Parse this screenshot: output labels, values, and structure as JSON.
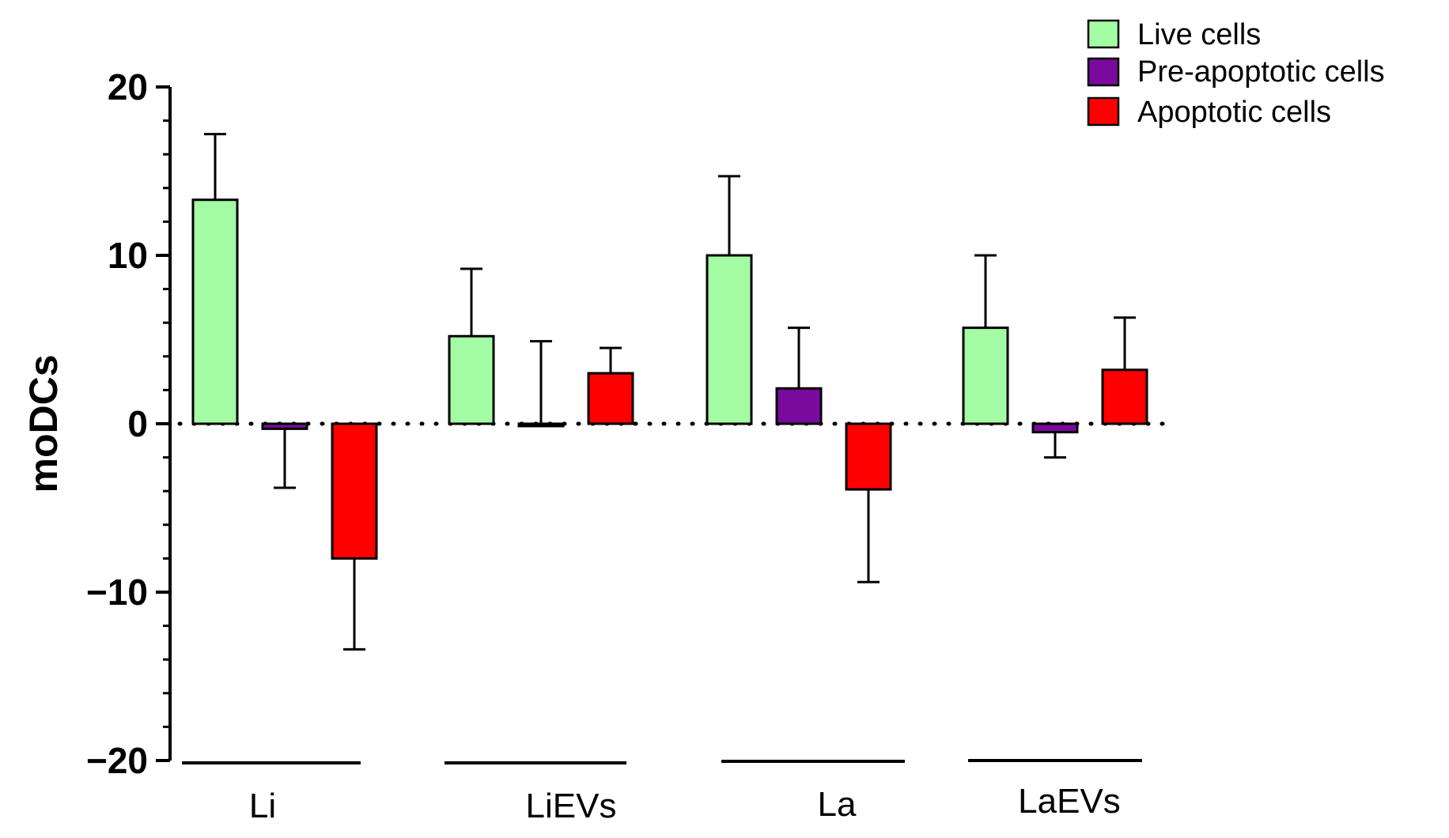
{
  "chart_data": {
    "type": "bar",
    "title": "",
    "xlabel": "",
    "ylabel": "moDCs",
    "ylim": [
      -20,
      20
    ],
    "yticks": [
      20,
      10,
      0,
      -10,
      -20
    ],
    "ytick_labels": [
      "20",
      "10",
      "0",
      "−10",
      "−20"
    ],
    "categories": [
      "Li",
      "LiEVs",
      "La",
      "LaEVs"
    ],
    "reference_line": 0,
    "legend_position": "top-right",
    "series": [
      {
        "name": "Live cells",
        "color": "#a3fca3",
        "values": [
          13.3,
          5.2,
          10.0,
          5.7
        ],
        "errors": [
          3.9,
          4.0,
          4.7,
          4.3
        ]
      },
      {
        "name": "Pre-apoptotic cells",
        "color": "#7a0a9e",
        "values": [
          -0.3,
          0.0,
          2.1,
          -0.5
        ],
        "errors": [
          3.5,
          4.9,
          3.6,
          1.5
        ]
      },
      {
        "name": "Apoptotic cells",
        "color": "#ff0000",
        "values": [
          -8.0,
          3.0,
          -3.9,
          3.2
        ],
        "errors": [
          5.4,
          1.5,
          5.5,
          3.1
        ]
      }
    ]
  }
}
